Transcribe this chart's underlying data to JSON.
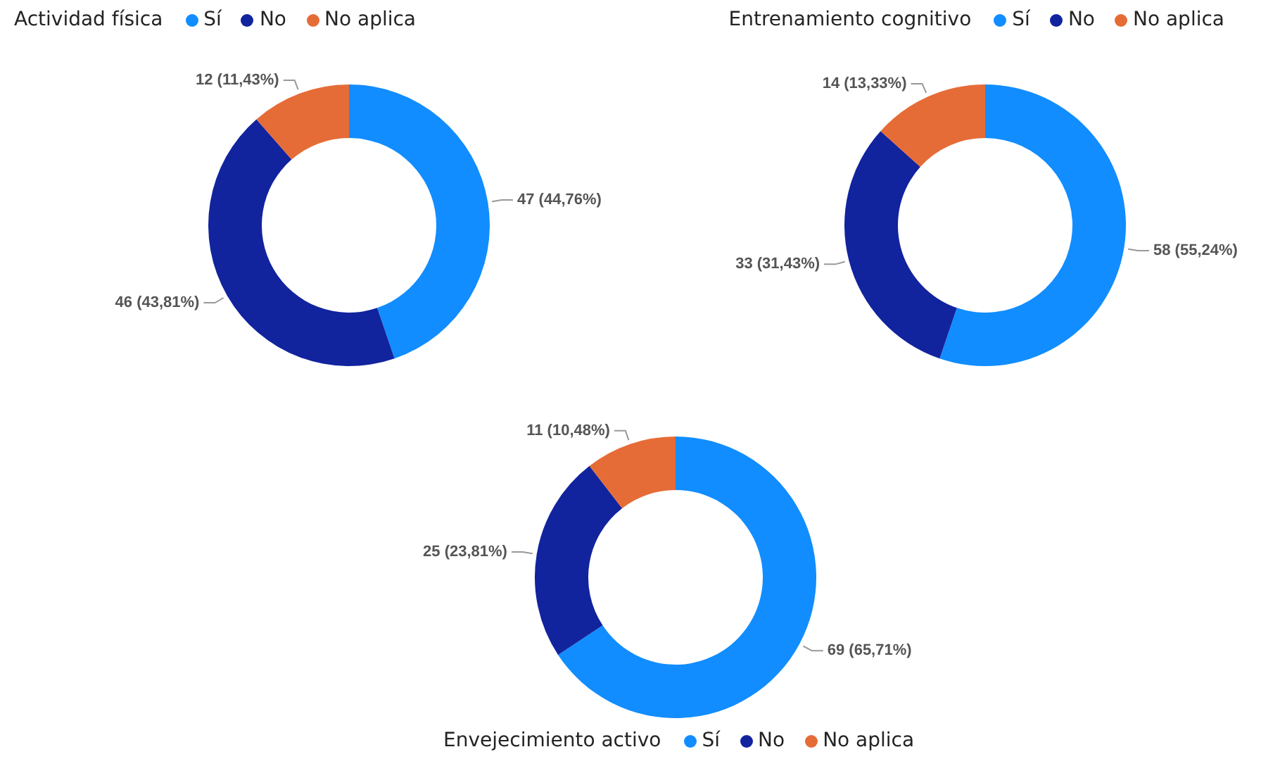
{
  "chart_data": [
    {
      "type": "donut",
      "legend_title": "Actividad física",
      "legend": "top left",
      "categories": [
        "Sí",
        "No",
        "No aplica"
      ],
      "values": [
        47,
        46,
        12
      ],
      "colors": [
        "#118dff",
        "#12239e",
        "#e66c37"
      ],
      "value_labels": [
        "47 (44,76%)",
        "46 (43,81%)",
        "12 (11,43%)"
      ]
    },
    {
      "type": "donut",
      "legend_title": "Entrenamiento cognitivo",
      "legend": "top right",
      "categories": [
        "Sí",
        "No",
        "No aplica"
      ],
      "values": [
        58,
        33,
        14
      ],
      "colors": [
        "#118dff",
        "#12239e",
        "#e66c37"
      ],
      "value_labels": [
        "58 (55,24%)",
        "33 (31,43%)",
        "14 (13,33%)"
      ]
    },
    {
      "type": "donut",
      "legend_title": "Envejecimiento activo",
      "legend": "bottom",
      "categories": [
        "Sí",
        "No",
        "No aplica"
      ],
      "values": [
        69,
        25,
        11
      ],
      "colors": [
        "#118dff",
        "#12239e",
        "#e66c37"
      ],
      "value_labels": [
        "69 (65,71%)",
        "25 (23,81%)",
        "11 (10,48%)"
      ]
    }
  ]
}
